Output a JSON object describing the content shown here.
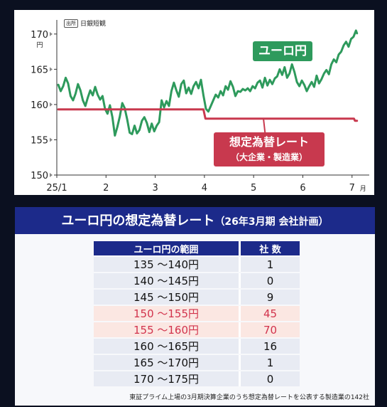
{
  "chart_data": [
    {
      "type": "line",
      "source": {
        "tag": "出所",
        "text": "日銀短観"
      },
      "y_unit": "円",
      "ylim": [
        150,
        172
      ],
      "y_ticks": [
        "150",
        "155",
        "160",
        "165",
        "170"
      ],
      "x_ticks": [
        {
          "label": "25/1",
          "x": 1
        },
        {
          "label": "2",
          "x": 2
        },
        {
          "label": "3",
          "x": 3
        },
        {
          "label": "4",
          "x": 4
        },
        {
          "label": "5",
          "x": 5
        },
        {
          "label": "6",
          "x": 6
        },
        {
          "label": "7",
          "x": 7
        }
      ],
      "x_unit": "月",
      "xlim": [
        1,
        7.35
      ],
      "series": [
        {
          "name": "ユーロ円",
          "color": "#2e9a5c",
          "points": [
            [
              1.03,
              162.8
            ],
            [
              1.08,
              161.9
            ],
            [
              1.13,
              162.6
            ],
            [
              1.18,
              163.8
            ],
            [
              1.23,
              163.0
            ],
            [
              1.28,
              161.2
            ],
            [
              1.33,
              160.6
            ],
            [
              1.38,
              161.5
            ],
            [
              1.43,
              162.9
            ],
            [
              1.48,
              162.0
            ],
            [
              1.53,
              160.6
            ],
            [
              1.58,
              159.8
            ],
            [
              1.63,
              161.0
            ],
            [
              1.68,
              162.0
            ],
            [
              1.73,
              161.3
            ],
            [
              1.78,
              162.5
            ],
            [
              1.83,
              161.4
            ],
            [
              1.88,
              160.7
            ],
            [
              1.93,
              161.2
            ],
            [
              1.98,
              159.4
            ],
            [
              2.03,
              158.7
            ],
            [
              2.08,
              159.9
            ],
            [
              2.13,
              158.2
            ],
            [
              2.18,
              155.6
            ],
            [
              2.23,
              156.8
            ],
            [
              2.28,
              158.3
            ],
            [
              2.33,
              160.2
            ],
            [
              2.38,
              159.5
            ],
            [
              2.43,
              157.9
            ],
            [
              2.48,
              156.0
            ],
            [
              2.53,
              155.8
            ],
            [
              2.58,
              157.0
            ],
            [
              2.63,
              155.9
            ],
            [
              2.68,
              156.4
            ],
            [
              2.73,
              157.7
            ],
            [
              2.78,
              158.2
            ],
            [
              2.83,
              157.4
            ],
            [
              2.88,
              156.1
            ],
            [
              2.93,
              157.3
            ],
            [
              2.98,
              156.2
            ],
            [
              3.03,
              157.0
            ],
            [
              3.08,
              157.5
            ],
            [
              3.13,
              160.6
            ],
            [
              3.18,
              159.6
            ],
            [
              3.23,
              160.5
            ],
            [
              3.28,
              159.8
            ],
            [
              3.33,
              161.9
            ],
            [
              3.38,
              163.1
            ],
            [
              3.43,
              162.0
            ],
            [
              3.48,
              161.1
            ],
            [
              3.53,
              162.9
            ],
            [
              3.58,
              163.4
            ],
            [
              3.63,
              161.6
            ],
            [
              3.68,
              162.4
            ],
            [
              3.73,
              161.5
            ],
            [
              3.78,
              162.6
            ],
            [
              3.83,
              163.2
            ],
            [
              3.88,
              162.3
            ],
            [
              3.93,
              163.5
            ],
            [
              3.98,
              161.3
            ],
            [
              4.03,
              159.4
            ],
            [
              4.08,
              159.0
            ],
            [
              4.13,
              159.8
            ],
            [
              4.18,
              160.6
            ],
            [
              4.23,
              161.4
            ],
            [
              4.28,
              161.0
            ],
            [
              4.33,
              161.9
            ],
            [
              4.38,
              161.3
            ],
            [
              4.43,
              162.6
            ],
            [
              4.48,
              162.1
            ],
            [
              4.53,
              163.3
            ],
            [
              4.58,
              162.5
            ],
            [
              4.63,
              161.2
            ],
            [
              4.68,
              161.9
            ],
            [
              4.73,
              161.8
            ],
            [
              4.78,
              162.2
            ],
            [
              4.83,
              162.0
            ],
            [
              4.88,
              162.3
            ],
            [
              4.93,
              161.9
            ],
            [
              4.98,
              162.6
            ],
            [
              5.03,
              162.3
            ],
            [
              5.08,
              163.1
            ],
            [
              5.13,
              163.4
            ],
            [
              5.18,
              162.4
            ],
            [
              5.23,
              163.8
            ],
            [
              5.28,
              162.7
            ],
            [
              5.33,
              163.5
            ],
            [
              5.38,
              162.9
            ],
            [
              5.43,
              163.7
            ],
            [
              5.48,
              164.0
            ],
            [
              5.53,
              165.0
            ],
            [
              5.58,
              164.2
            ],
            [
              5.63,
              165.3
            ],
            [
              5.68,
              163.8
            ],
            [
              5.73,
              164.4
            ],
            [
              5.78,
              165.7
            ],
            [
              5.83,
              164.6
            ],
            [
              5.88,
              163.2
            ],
            [
              5.93,
              162.6
            ],
            [
              5.98,
              163.4
            ],
            [
              6.03,
              162.8
            ],
            [
              6.08,
              161.9
            ],
            [
              6.13,
              162.6
            ],
            [
              6.18,
              163.2
            ],
            [
              6.23,
              162.5
            ],
            [
              6.28,
              164.1
            ],
            [
              6.33,
              163.0
            ],
            [
              6.38,
              163.6
            ],
            [
              6.43,
              164.4
            ],
            [
              6.48,
              164.9
            ],
            [
              6.53,
              164.3
            ],
            [
              6.58,
              165.7
            ],
            [
              6.63,
              166.4
            ],
            [
              6.68,
              166.0
            ],
            [
              6.73,
              167.1
            ],
            [
              6.78,
              167.5
            ],
            [
              6.83,
              168.4
            ],
            [
              6.88,
              168.9
            ],
            [
              6.93,
              168.2
            ],
            [
              6.98,
              169.3
            ],
            [
              7.03,
              169.6
            ],
            [
              7.08,
              170.5
            ],
            [
              7.1,
              170.1
            ]
          ]
        },
        {
          "name": "想定為替レート",
          "color": "#c8394e",
          "points": [
            [
              1.03,
              159.3
            ],
            [
              3.98,
              159.3
            ],
            [
              4.02,
              158.0
            ],
            [
              7.04,
              158.0
            ],
            [
              7.06,
              157.7
            ],
            [
              7.1,
              157.7
            ]
          ]
        }
      ],
      "labels": {
        "euro": "ユーロ円",
        "assumed_rate": "想定為替レート",
        "assumed_rate_sub": "（大企業・製造業）"
      }
    },
    {
      "type": "table",
      "title": "ユーロ円の想定為替レート",
      "title_sub": "（26年3月期 会社計画）",
      "columns": [
        "ユーロ円の範囲",
        "社 数"
      ],
      "rows": [
        {
          "range": "135 〜140円",
          "count": "1",
          "highlight": false
        },
        {
          "range": "140 〜145円",
          "count": "0",
          "highlight": false
        },
        {
          "range": "145 〜150円",
          "count": "9",
          "highlight": false
        },
        {
          "range": "150 〜155円",
          "count": "45",
          "highlight": true
        },
        {
          "range": "155 〜160円",
          "count": "70",
          "highlight": true
        },
        {
          "range": "160 〜165円",
          "count": "16",
          "highlight": false
        },
        {
          "range": "165 〜170円",
          "count": "1",
          "highlight": false
        },
        {
          "range": "170 〜175円",
          "count": "0",
          "highlight": false
        }
      ],
      "footnote": "東証プライム上場の3月期決算企業のうち想定為替レートを公表する製造業の142社"
    }
  ]
}
